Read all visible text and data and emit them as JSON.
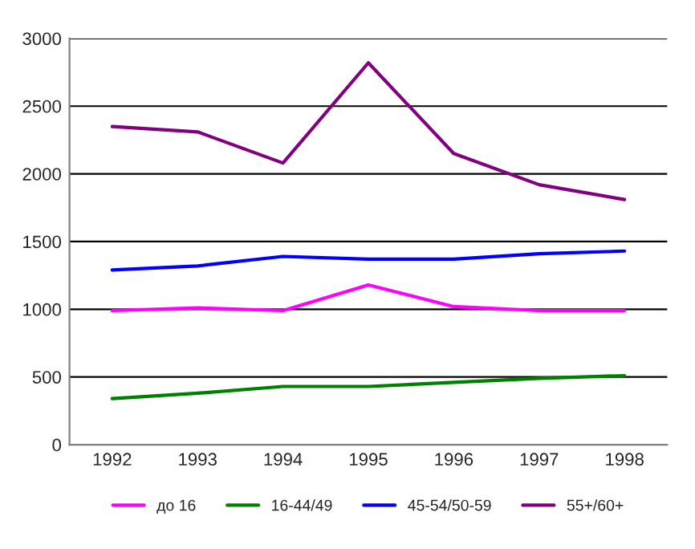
{
  "chart_data": {
    "type": "line",
    "categories": [
      "1992",
      "1993",
      "1994",
      "1995",
      "1996",
      "1997",
      "1998"
    ],
    "series": [
      {
        "name": "до 16",
        "color": "#ff00ff",
        "values": [
          990,
          1010,
          990,
          1180,
          1020,
          990,
          990
        ]
      },
      {
        "name": "16-44/49",
        "color": "#008000",
        "values": [
          340,
          380,
          430,
          430,
          460,
          490,
          510
        ]
      },
      {
        "name": "45-54/50-59",
        "color": "#0000ff",
        "values": [
          1290,
          1320,
          1390,
          1370,
          1370,
          1410,
          1430
        ]
      },
      {
        "name": "55+/60+",
        "color": "#800080",
        "values": [
          2350,
          2310,
          2080,
          2820,
          2150,
          1920,
          1810
        ]
      }
    ],
    "ylim": [
      0,
      3000
    ],
    "yticks": [
      0,
      500,
      1000,
      1500,
      2000,
      2500,
      3000
    ],
    "grid": "y",
    "legend": "bottom",
    "marker": "none",
    "line_style": "solid"
  }
}
